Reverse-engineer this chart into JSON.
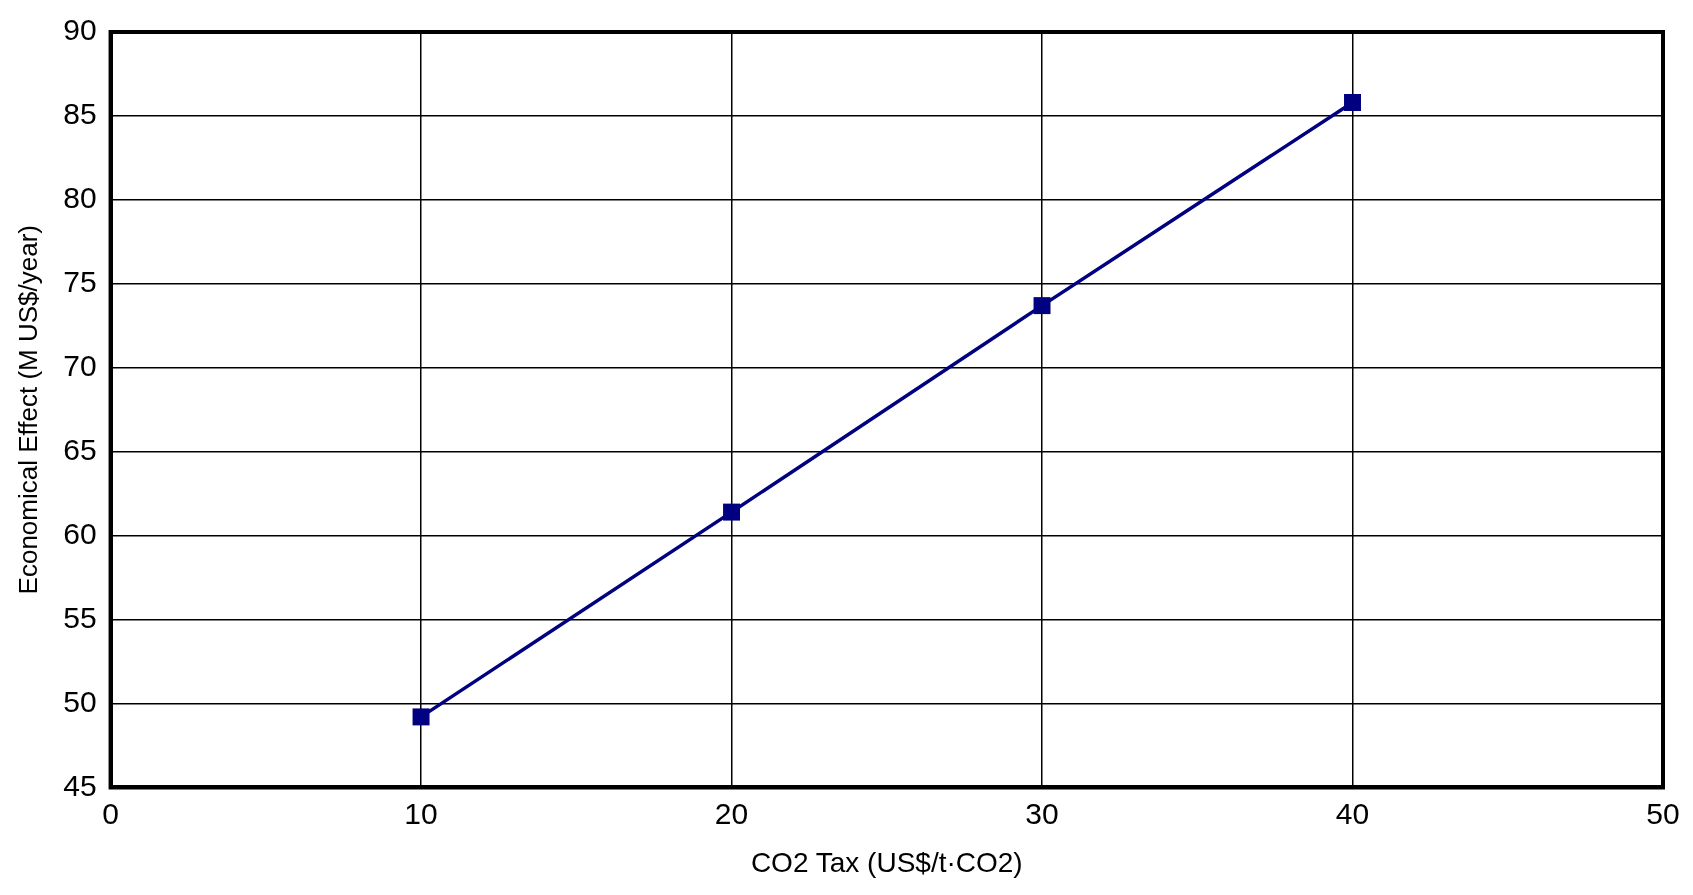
{
  "chart_data": {
    "type": "line",
    "xlabel": "CO2 Tax (US$/t·CO2)",
    "ylabel": "Economical Effect (M US$/year)",
    "x": [
      10,
      20,
      30,
      40
    ],
    "series": [
      {
        "color": "#000080",
        "values": [
          49.2,
          61.4,
          73.7,
          85.8
        ]
      }
    ],
    "xlim": [
      0,
      50
    ],
    "xticks": [
      0,
      10,
      20,
      30,
      40,
      50
    ],
    "ylim": [
      45,
      90
    ],
    "yticks": [
      45,
      50,
      55,
      60,
      65,
      70,
      75,
      80,
      85,
      90
    ],
    "grid": true,
    "legend": false,
    "marker": "square",
    "line_style": "solid"
  }
}
